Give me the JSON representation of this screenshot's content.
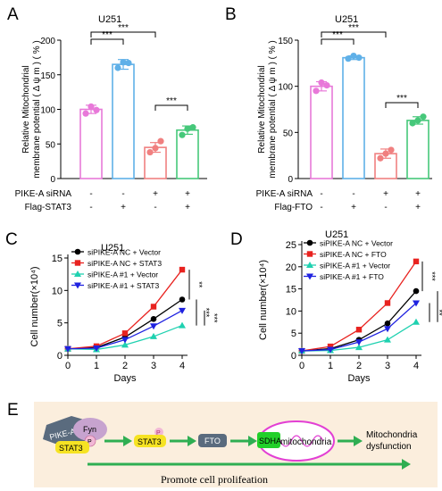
{
  "chart_data": [
    {
      "panel": "A",
      "type": "bar",
      "title": "U251",
      "ylabel": "Relative Mitochondrial membrane potential ( Δ ψ m ) ( % )",
      "ylim": [
        0,
        200
      ],
      "yticks": [
        "0",
        "50",
        "100",
        "150",
        "200"
      ],
      "colors": [
        "#e879d9",
        "#5fb0e8",
        "#f08080",
        "#46c87a"
      ],
      "values": [
        100,
        165,
        45,
        70
      ],
      "points": [
        [
          94,
          104,
          99
        ],
        [
          160,
          168,
          167
        ],
        [
          38,
          44,
          54
        ],
        [
          63,
          72,
          74
        ]
      ],
      "errors": [
        6,
        7,
        7,
        6
      ],
      "condition_rows": [
        {
          "label": "PIKE-A siRNA",
          "marks": [
            "-",
            "-",
            "+",
            "+"
          ]
        },
        {
          "label": "Flag-STAT3",
          "marks": [
            "-",
            "+",
            "-",
            "+"
          ]
        }
      ],
      "brackets": [
        {
          "from": 0,
          "to": 1,
          "label": "***"
        },
        {
          "from": 0,
          "to": 2,
          "label": "***"
        },
        {
          "from": 2,
          "to": 3,
          "label": "***"
        }
      ]
    },
    {
      "panel": "B",
      "type": "bar",
      "title": "U251",
      "ylabel": "Relative Mitochondrial membrane potential ( Δ ψ m ) ( % )",
      "ylim": [
        0,
        150
      ],
      "yticks": [
        "0",
        "50",
        "100",
        "150"
      ],
      "colors": [
        "#e879d9",
        "#5fb0e8",
        "#f08080",
        "#46c87a"
      ],
      "values": [
        100,
        131,
        27,
        63
      ],
      "points": [
        [
          95,
          104,
          101
        ],
        [
          130,
          133,
          131
        ],
        [
          22,
          27,
          31
        ],
        [
          60,
          63,
          67
        ]
      ],
      "errors": [
        5,
        2,
        5,
        4
      ],
      "condition_rows": [
        {
          "label": "PIKE-A siRNA",
          "marks": [
            "-",
            "-",
            "+",
            "+"
          ]
        },
        {
          "label": "Flag-FTO",
          "marks": [
            "-",
            "+",
            "-",
            "+"
          ]
        }
      ],
      "brackets": [
        {
          "from": 0,
          "to": 1,
          "label": "***"
        },
        {
          "from": 0,
          "to": 2,
          "label": "***"
        },
        {
          "from": 2,
          "to": 3,
          "label": "***"
        }
      ]
    },
    {
      "panel": "C",
      "type": "line",
      "title": "U251",
      "xlabel": "Days",
      "ylabel": "Cell number(×10⁴)",
      "xlim": [
        0,
        4
      ],
      "ylim": [
        0,
        15
      ],
      "xticks": [
        "0",
        "1",
        "2",
        "3",
        "4"
      ],
      "yticks": [
        "0",
        "5",
        "10",
        "15"
      ],
      "x": [
        0,
        1,
        2,
        3,
        4
      ],
      "series": [
        {
          "name": "siPIKE-A NC + Vector",
          "color": "#000000",
          "marker": "circle",
          "values": [
            1.0,
            1.2,
            2.8,
            5.6,
            8.6
          ]
        },
        {
          "name": "siPIKE-A NC + STAT3",
          "color": "#e8221f",
          "marker": "square",
          "values": [
            1.0,
            1.4,
            3.4,
            7.5,
            13.2
          ]
        },
        {
          "name": "siPIKE-A #1 + Vector",
          "color": "#1fd1b0",
          "marker": "triangle-up",
          "values": [
            1.0,
            0.9,
            1.6,
            2.9,
            4.6
          ]
        },
        {
          "name": "siPIKE-A #1 + STAT3",
          "color": "#1f22e0",
          "marker": "triangle-down",
          "values": [
            1.0,
            1.1,
            2.4,
            4.5,
            6.9
          ]
        }
      ],
      "sig_marks": [
        "**",
        "***",
        "***"
      ]
    },
    {
      "panel": "D",
      "type": "line",
      "title": "U251",
      "xlabel": "Days",
      "ylabel": "Cell number(×10⁴)",
      "xlim": [
        0,
        4
      ],
      "ylim": [
        0,
        25
      ],
      "xticks": [
        "0",
        "1",
        "2",
        "3",
        "4"
      ],
      "yticks": [
        "0",
        "5",
        "10",
        "15",
        "20",
        "25"
      ],
      "x": [
        0,
        1,
        2,
        3,
        4
      ],
      "series": [
        {
          "name": "siPIKE-A NC + Vector",
          "color": "#000000",
          "marker": "circle",
          "values": [
            1.0,
            1.5,
            3.5,
            7.2,
            14.5
          ]
        },
        {
          "name": "siPIKE-A NC + FTO",
          "color": "#e8221f",
          "marker": "square",
          "values": [
            1.0,
            2.0,
            5.8,
            11.8,
            21.2
          ]
        },
        {
          "name": "siPIKE-A #1 + Vector",
          "color": "#1fd1b0",
          "marker": "triangle-up",
          "values": [
            1.0,
            1.1,
            1.8,
            3.5,
            7.5
          ]
        },
        {
          "name": "siPIKE-A #1 + FTO",
          "color": "#1f22e0",
          "marker": "triangle-down",
          "values": [
            1.0,
            1.3,
            3.0,
            6.0,
            11.8
          ]
        }
      ],
      "sig_marks": [
        "***",
        "**",
        "***"
      ]
    }
  ],
  "panel_e": {
    "letter": "E",
    "pike_label": "PIKE-A",
    "fyn_label": "Fyn",
    "p_label": "P",
    "stat3_label": "STAT3",
    "stat3_p_label": "P",
    "fto_label": "FTO",
    "sdha_label": "SDHA",
    "mito_label": "mitochondria",
    "outcome_label": "Mitochondria dysfunction",
    "footer": "Promote cell prolifeation"
  }
}
